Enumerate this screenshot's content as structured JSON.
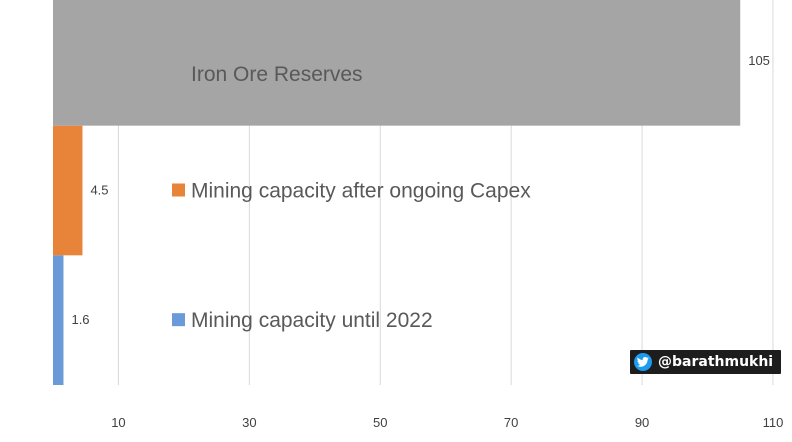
{
  "chart_data": {
    "type": "bar",
    "orientation": "horizontal",
    "series": [
      {
        "name": "Mining capacity until 2022",
        "value": 1.6,
        "color": "#6a9bd8",
        "label_position": "legend"
      },
      {
        "name": "Mining capacity after ongoing Capex",
        "value": 4.5,
        "color": "#e8833a",
        "label_position": "legend"
      },
      {
        "name": "Iron Ore Reserves",
        "value": 105,
        "color": "#a5a5a5",
        "label_position": "inside-bar"
      }
    ],
    "x_ticks": [
      10,
      30,
      50,
      70,
      90,
      110
    ],
    "xlim": [
      0,
      110
    ],
    "grid": "vertical"
  },
  "watermark": {
    "icon": "twitter-bird-icon",
    "text": "@barathmukhi"
  }
}
